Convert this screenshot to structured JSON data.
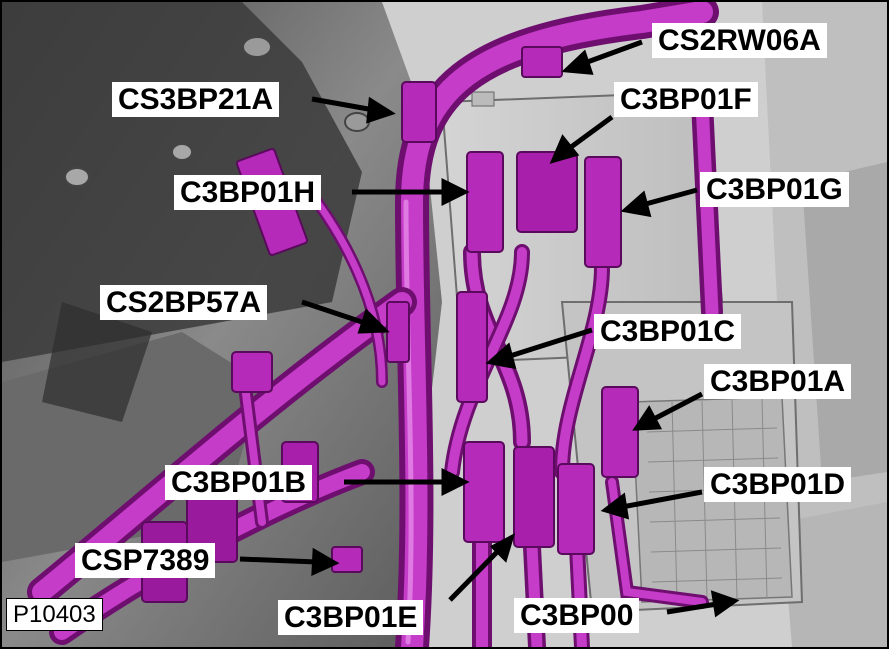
{
  "figure": {
    "id_label": "P10403",
    "callouts": [
      {
        "key": "cs2rw06a",
        "label": "CS2RW06A"
      },
      {
        "key": "cs3bp21a",
        "label": "CS3BP21A"
      },
      {
        "key": "c3bp01f",
        "label": "C3BP01F"
      },
      {
        "key": "c3bp01h",
        "label": "C3BP01H"
      },
      {
        "key": "c3bp01g",
        "label": "C3BP01G"
      },
      {
        "key": "cs2bp57a",
        "label": "CS2BP57A"
      },
      {
        "key": "c3bp01c",
        "label": "C3BP01C"
      },
      {
        "key": "c3bp01a",
        "label": "C3BP01A"
      },
      {
        "key": "c3bp01b",
        "label": "C3BP01B"
      },
      {
        "key": "c3bp01d",
        "label": "C3BP01D"
      },
      {
        "key": "csp7389",
        "label": "CSP7389"
      },
      {
        "key": "c3bp01e",
        "label": "C3BP01E"
      },
      {
        "key": "c3bp00",
        "label": "C3BP00"
      }
    ]
  },
  "colors": {
    "harness": "#b21fb5",
    "harness_highlight": "#e070e2",
    "harness_dark": "#6e0f70",
    "panel": "#c9c9c9",
    "body_dark": "#3a3a3a",
    "body_mid": "#8c8c8c"
  }
}
